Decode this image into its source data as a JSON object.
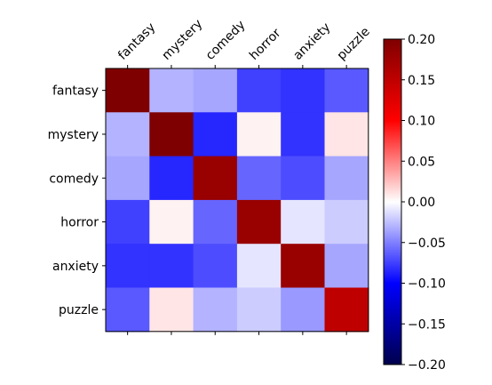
{
  "chart_data": {
    "type": "heatmap",
    "title": "",
    "xlabel": "",
    "ylabel": "",
    "x_categories": [
      "fantasy",
      "mystery",
      "comedy",
      "horror",
      "anxiety",
      "puzzle"
    ],
    "y_categories": [
      "fantasy",
      "mystery",
      "comedy",
      "horror",
      "anxiety",
      "puzzle"
    ],
    "values": [
      [
        0.2,
        -0.03,
        -0.035,
        -0.075,
        -0.08,
        -0.065
      ],
      [
        -0.03,
        0.2,
        -0.085,
        0.005,
        -0.08,
        0.01
      ],
      [
        -0.035,
        -0.085,
        0.18,
        -0.06,
        -0.07,
        -0.035
      ],
      [
        -0.075,
        0.005,
        -0.06,
        0.18,
        -0.01,
        -0.02
      ],
      [
        -0.08,
        -0.08,
        -0.07,
        -0.01,
        0.18,
        -0.035
      ],
      [
        -0.065,
        0.01,
        -0.03,
        -0.02,
        -0.04,
        0.15
      ]
    ],
    "colormap": "seismic",
    "colormap_stops": [
      "#00004c",
      "#0000ff",
      "#ffffff",
      "#ff0000",
      "#7f0000"
    ],
    "vmin": -0.2,
    "vmax": 0.2,
    "colorbar": {
      "ticks": [
        0.2,
        0.15,
        0.1,
        0.05,
        0.0,
        -0.05,
        -0.1,
        -0.15,
        -0.2
      ],
      "tick_labels": [
        "0.20",
        "0.15",
        "0.10",
        "0.05",
        "0.00",
        "−0.05",
        "−0.10",
        "−0.15",
        "−0.20"
      ]
    },
    "x_tick_position": "top",
    "grid": false
  }
}
